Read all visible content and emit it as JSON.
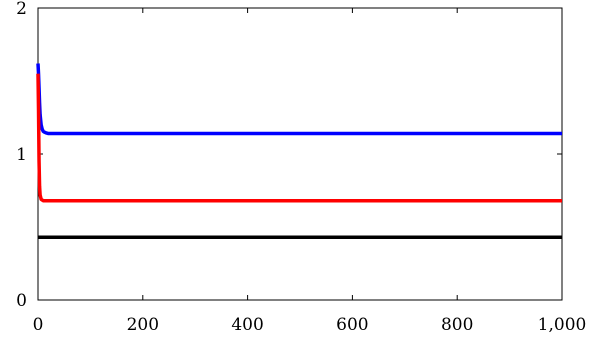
{
  "chart_data": {
    "type": "line",
    "title": "",
    "xlabel": "",
    "ylabel": "",
    "xlim": [
      0,
      1000
    ],
    "ylim": [
      0,
      2
    ],
    "x_ticks": [
      0,
      200,
      400,
      600,
      800,
      1000
    ],
    "x_tick_labels": [
      "0",
      "200",
      "400",
      "600",
      "800",
      "1,000"
    ],
    "y_ticks": [
      0,
      1,
      2
    ],
    "y_tick_labels": [
      "0",
      "1",
      "2"
    ],
    "grid": false,
    "legend": "none",
    "series": [
      {
        "color": "#0000ff",
        "x": [
          0,
          1,
          2,
          3,
          4,
          6,
          8,
          10,
          12,
          15,
          20,
          30,
          50,
          100,
          1000
        ],
        "y": [
          1.62,
          1.55,
          1.45,
          1.35,
          1.27,
          1.2,
          1.17,
          1.155,
          1.15,
          1.145,
          1.14,
          1.14,
          1.14,
          1.14,
          1.14
        ]
      },
      {
        "color": "#ff0000",
        "x": [
          0,
          1,
          2,
          3,
          4,
          6,
          10,
          20,
          1000
        ],
        "y": [
          1.55,
          1.3,
          0.95,
          0.78,
          0.72,
          0.69,
          0.68,
          0.68,
          0.68
        ]
      },
      {
        "color": "#000000",
        "x": [
          0,
          1000
        ],
        "y": [
          0.43,
          0.43
        ]
      }
    ]
  }
}
